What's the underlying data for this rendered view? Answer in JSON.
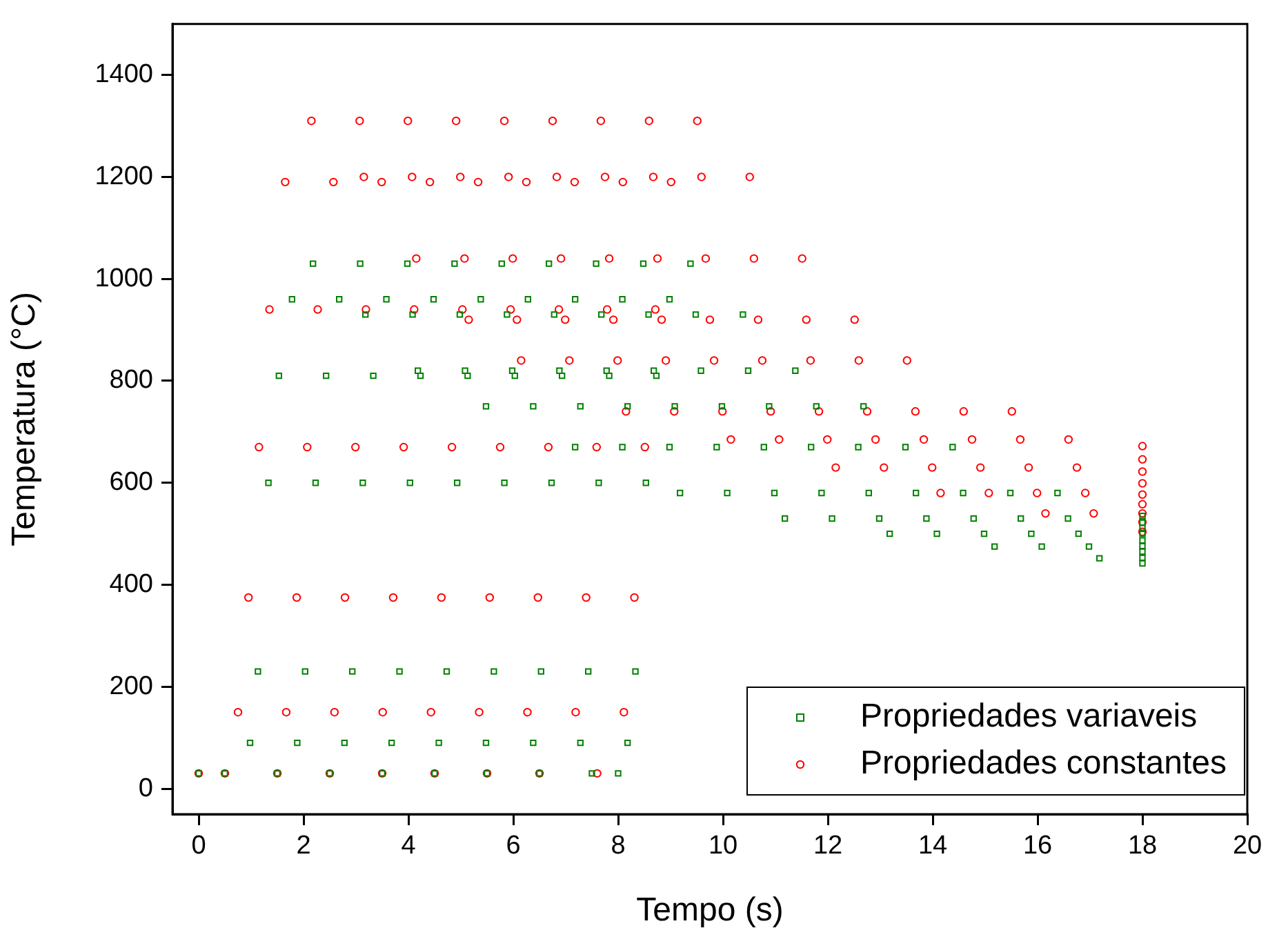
{
  "chart_data": {
    "type": "scatter",
    "xlabel": "Tempo (s)",
    "ylabel": "Temperatura (°C)",
    "xlim": [
      -0.5,
      20
    ],
    "xticks": [
      0,
      2,
      4,
      6,
      8,
      10,
      12,
      14,
      16,
      18,
      20
    ],
    "ylim": [
      -50,
      1500
    ],
    "yticks": [
      0,
      200,
      400,
      600,
      800,
      1000,
      1200,
      1400
    ],
    "grid": false,
    "legend": "bottom right",
    "series": [
      {
        "name": "Propriedades variaveis",
        "color": "#008000",
        "marker": "square",
        "x": [
          0,
          0.5,
          1.5,
          2.5,
          3.5,
          4.5,
          5.5,
          6.5,
          7.5,
          8.0,
          0.98,
          1.13,
          1.33,
          1.53,
          1.78,
          2.18,
          3.18,
          4.18,
          5.48,
          7.18,
          9.18,
          11.18,
          13.18,
          15.18,
          17.18,
          18,
          1.88,
          2.03,
          2.23,
          2.43,
          2.68,
          3.08,
          4.08,
          5.08,
          6.38,
          8.08,
          10.08,
          12.08,
          14.08,
          16.08,
          18,
          2.78,
          2.93,
          3.13,
          3.33,
          3.58,
          3.98,
          4.98,
          5.98,
          7.28,
          8.98,
          10.98,
          12.98,
          14.98,
          16.98,
          18,
          3.68,
          3.83,
          4.03,
          4.23,
          4.48,
          4.88,
          5.88,
          6.88,
          8.18,
          9.88,
          11.88,
          13.88,
          15.88,
          18,
          4.58,
          4.73,
          4.93,
          5.13,
          5.38,
          5.78,
          6.78,
          7.78,
          9.08,
          10.78,
          12.78,
          14.78,
          16.78,
          18,
          5.48,
          5.63,
          5.83,
          6.03,
          6.28,
          6.68,
          7.68,
          8.68,
          9.98,
          11.68,
          13.68,
          15.68,
          18,
          6.38,
          6.53,
          6.73,
          6.93,
          7.18,
          7.58,
          8.58,
          9.58,
          10.88,
          12.58,
          14.58,
          16.58,
          18,
          7.28,
          7.43,
          7.63,
          7.83,
          8.08,
          8.48,
          9.48,
          10.48,
          11.78,
          13.48,
          15.48,
          18,
          8.18,
          8.33,
          8.53,
          8.73,
          8.98,
          9.38,
          10.38,
          11.38,
          12.68,
          14.38,
          16.38,
          18
        ],
        "values": [
          30,
          30,
          30,
          30,
          30,
          30,
          30,
          30,
          30,
          30,
          90,
          230,
          600,
          810,
          960,
          1030,
          930,
          820,
          750,
          670,
          580,
          530,
          500,
          475,
          452,
          442,
          90,
          230,
          600,
          810,
          960,
          1030,
          930,
          820,
          750,
          670,
          580,
          530,
          500,
          475,
          453,
          90,
          230,
          600,
          810,
          960,
          1030,
          930,
          820,
          750,
          670,
          580,
          530,
          500,
          475,
          465,
          90,
          230,
          600,
          810,
          960,
          1030,
          930,
          820,
          750,
          670,
          580,
          530,
          500,
          476,
          90,
          230,
          600,
          810,
          960,
          1030,
          930,
          820,
          750,
          670,
          580,
          530,
          500,
          487,
          90,
          230,
          600,
          810,
          960,
          1030,
          930,
          820,
          750,
          670,
          580,
          530,
          500,
          90,
          230,
          600,
          810,
          960,
          1030,
          930,
          820,
          750,
          670,
          580,
          530,
          512,
          90,
          230,
          600,
          810,
          960,
          1030,
          930,
          820,
          750,
          670,
          580,
          522,
          90,
          230,
          600,
          810,
          960,
          1030,
          930,
          820,
          750,
          670,
          580,
          535
        ]
      },
      {
        "name": "Propriedades constantes",
        "color": "#ff0000",
        "marker": "circle",
        "x": [
          0,
          0.5,
          1.5,
          2.5,
          3.5,
          4.5,
          5.5,
          6.5,
          7.6,
          0.75,
          0.95,
          1.15,
          1.35,
          1.65,
          2.15,
          3.15,
          4.15,
          5.15,
          6.15,
          8.15,
          10.15,
          12.15,
          14.15,
          16.15,
          18,
          1.67,
          1.87,
          2.07,
          2.27,
          2.57,
          3.07,
          4.07,
          5.07,
          6.07,
          7.07,
          9.07,
          11.07,
          13.07,
          15.07,
          17.07,
          18,
          2.59,
          2.79,
          2.99,
          3.19,
          3.49,
          3.99,
          4.99,
          5.99,
          6.99,
          7.99,
          9.99,
          11.99,
          13.99,
          15.99,
          18,
          3.51,
          3.71,
          3.91,
          4.11,
          4.41,
          4.91,
          5.91,
          6.91,
          7.91,
          8.91,
          10.91,
          12.91,
          14.91,
          16.91,
          18,
          4.43,
          4.63,
          4.83,
          5.03,
          5.33,
          5.83,
          6.83,
          7.83,
          8.83,
          9.83,
          11.83,
          13.83,
          15.83,
          18,
          5.35,
          5.55,
          5.75,
          5.95,
          6.25,
          6.75,
          7.75,
          8.75,
          9.75,
          10.75,
          12.75,
          14.75,
          16.75,
          18,
          6.27,
          6.47,
          6.67,
          6.87,
          7.17,
          7.67,
          8.67,
          9.67,
          10.67,
          11.67,
          13.67,
          15.67,
          18,
          7.19,
          7.39,
          7.59,
          7.79,
          8.09,
          8.59,
          9.59,
          10.59,
          11.59,
          12.59,
          14.59,
          16.59,
          18,
          8.11,
          8.31,
          8.51,
          8.71,
          9.01,
          9.51,
          10.51,
          11.51,
          12.51,
          13.51,
          15.51,
          18
        ],
        "values": [
          30,
          30,
          30,
          30,
          30,
          30,
          30,
          30,
          30,
          150,
          375,
          670,
          940,
          1190,
          1310,
          1200,
          1040,
          920,
          840,
          740,
          685,
          630,
          580,
          540,
          504,
          150,
          375,
          670,
          940,
          1190,
          1310,
          1200,
          1040,
          920,
          840,
          740,
          685,
          630,
          580,
          540,
          523,
          150,
          375,
          670,
          940,
          1190,
          1310,
          1200,
          1040,
          920,
          840,
          740,
          685,
          630,
          580,
          540,
          150,
          375,
          670,
          940,
          1190,
          1310,
          1200,
          1040,
          920,
          840,
          740,
          685,
          630,
          580,
          558,
          150,
          375,
          670,
          940,
          1190,
          1310,
          1200,
          1040,
          920,
          840,
          740,
          685,
          630,
          577,
          150,
          375,
          670,
          940,
          1190,
          1310,
          1200,
          1040,
          920,
          840,
          740,
          685,
          630,
          599,
          150,
          375,
          670,
          940,
          1190,
          1310,
          1200,
          1040,
          920,
          840,
          740,
          685,
          622,
          150,
          375,
          670,
          940,
          1190,
          1310,
          1200,
          1040,
          920,
          840,
          740,
          685,
          646,
          150,
          375,
          670,
          940,
          1190,
          1310,
          1200,
          1040,
          920,
          840,
          740,
          672
        ]
      }
    ]
  }
}
